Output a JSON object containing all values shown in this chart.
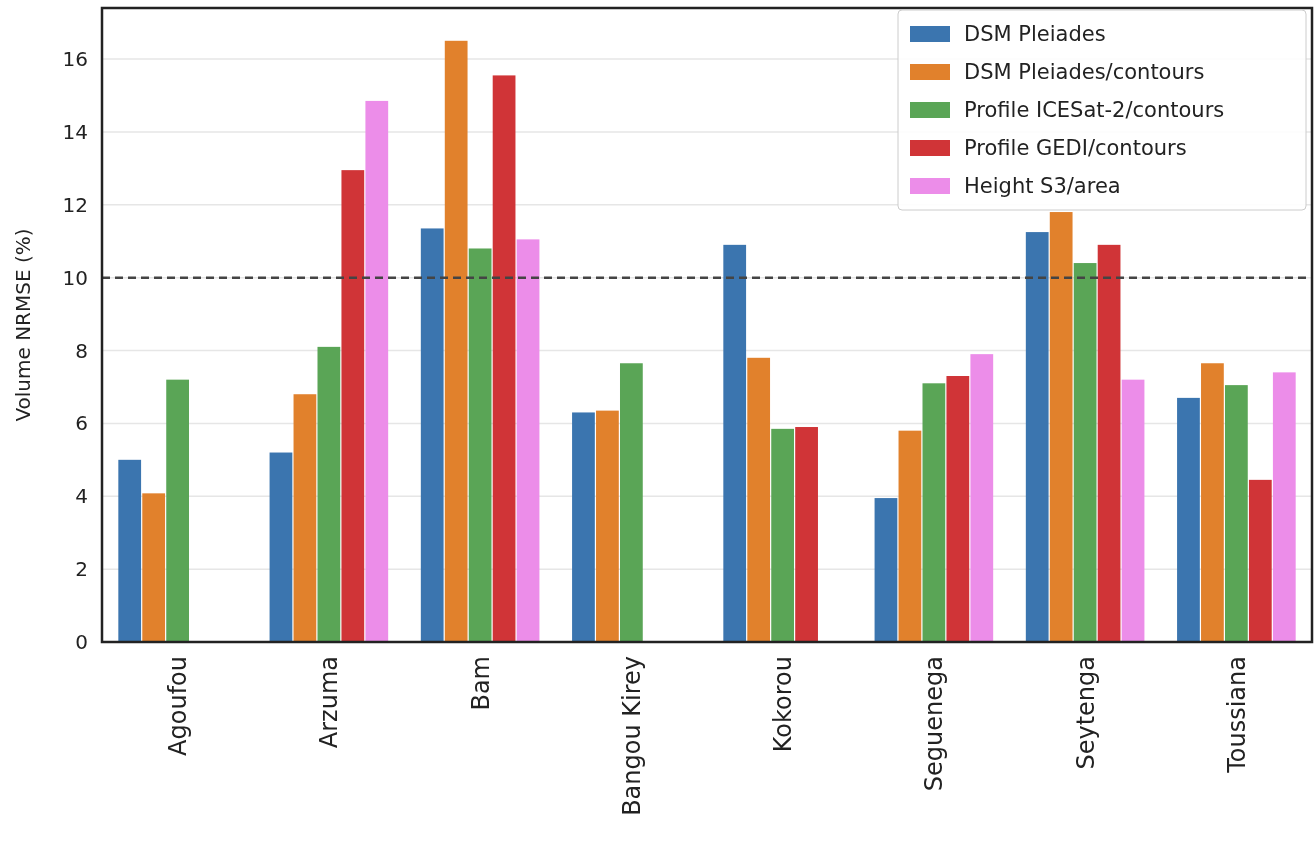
{
  "chart_data": {
    "type": "bar",
    "ylabel": "Volume NRMSE (%)",
    "categories": [
      "Agoufou",
      "Arzuma",
      "Bam",
      "Bangou Kirey",
      "Kokorou",
      "Seguenega",
      "Seytenga",
      "Toussiana"
    ],
    "series": [
      {
        "name": "DSM Pleiades",
        "color": "#3b75af",
        "values": [
          5.0,
          5.2,
          11.35,
          6.3,
          10.9,
          3.95,
          11.25,
          6.7
        ]
      },
      {
        "name": "DSM Pleiades/contours",
        "color": "#e1812c",
        "values": [
          4.08,
          6.8,
          16.5,
          6.35,
          7.8,
          5.8,
          11.8,
          7.65
        ]
      },
      {
        "name": "Profile ICESat-2/contours",
        "color": "#5aa556",
        "values": [
          7.2,
          8.1,
          10.8,
          7.65,
          5.85,
          7.1,
          10.4,
          7.05
        ]
      },
      {
        "name": "Profile GEDI/contours",
        "color": "#d03437",
        "values": [
          null,
          12.95,
          15.55,
          null,
          5.9,
          7.3,
          10.9,
          4.45
        ]
      },
      {
        "name": "Height S3/area",
        "color": "#ec8de9",
        "values": [
          null,
          14.85,
          11.05,
          null,
          null,
          7.9,
          7.2,
          7.4
        ]
      }
    ],
    "ylim": [
      0,
      17.4
    ],
    "yticks": [
      0,
      2,
      4,
      6,
      8,
      10,
      12,
      14,
      16
    ],
    "grid": "y",
    "legend": "top right",
    "ref_lines": [
      {
        "axis": "y",
        "value": 10,
        "color": "#444444",
        "line_style": "dashed"
      }
    ]
  }
}
